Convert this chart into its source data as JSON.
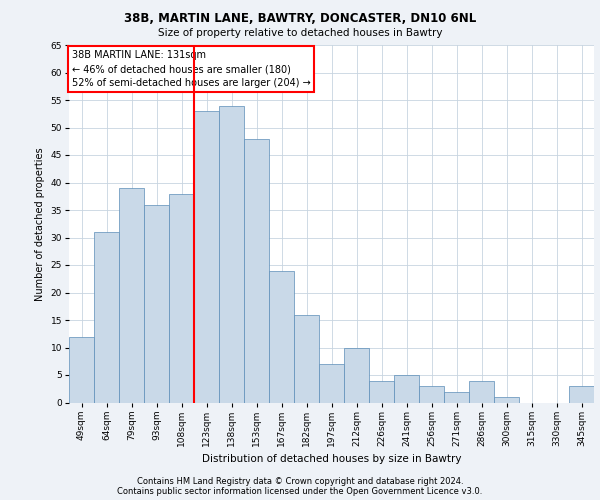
{
  "title1": "38B, MARTIN LANE, BAWTRY, DONCASTER, DN10 6NL",
  "title2": "Size of property relative to detached houses in Bawtry",
  "xlabel": "Distribution of detached houses by size in Bawtry",
  "ylabel": "Number of detached properties",
  "categories": [
    "49sqm",
    "64sqm",
    "79sqm",
    "93sqm",
    "108sqm",
    "123sqm",
    "138sqm",
    "153sqm",
    "167sqm",
    "182sqm",
    "197sqm",
    "212sqm",
    "226sqm",
    "241sqm",
    "256sqm",
    "271sqm",
    "286sqm",
    "300sqm",
    "315sqm",
    "330sqm",
    "345sqm"
  ],
  "values": [
    12,
    31,
    39,
    36,
    38,
    53,
    54,
    48,
    24,
    16,
    7,
    10,
    4,
    5,
    3,
    2,
    4,
    1,
    0,
    0,
    3
  ],
  "bar_color": "#c9d9e8",
  "bar_edge_color": "#5b8db8",
  "red_line_index": 5,
  "annotation_text": "38B MARTIN LANE: 131sqm\n← 46% of detached houses are smaller (180)\n52% of semi-detached houses are larger (204) →",
  "annotation_box_color": "white",
  "annotation_box_edge": "red",
  "ylim": [
    0,
    65
  ],
  "yticks": [
    0,
    5,
    10,
    15,
    20,
    25,
    30,
    35,
    40,
    45,
    50,
    55,
    60,
    65
  ],
  "footer1": "Contains HM Land Registry data © Crown copyright and database right 2024.",
  "footer2": "Contains public sector information licensed under the Open Government Licence v3.0.",
  "bg_color": "#eef2f7",
  "plot_bg_color": "#ffffff",
  "grid_color": "#c8d4e0"
}
